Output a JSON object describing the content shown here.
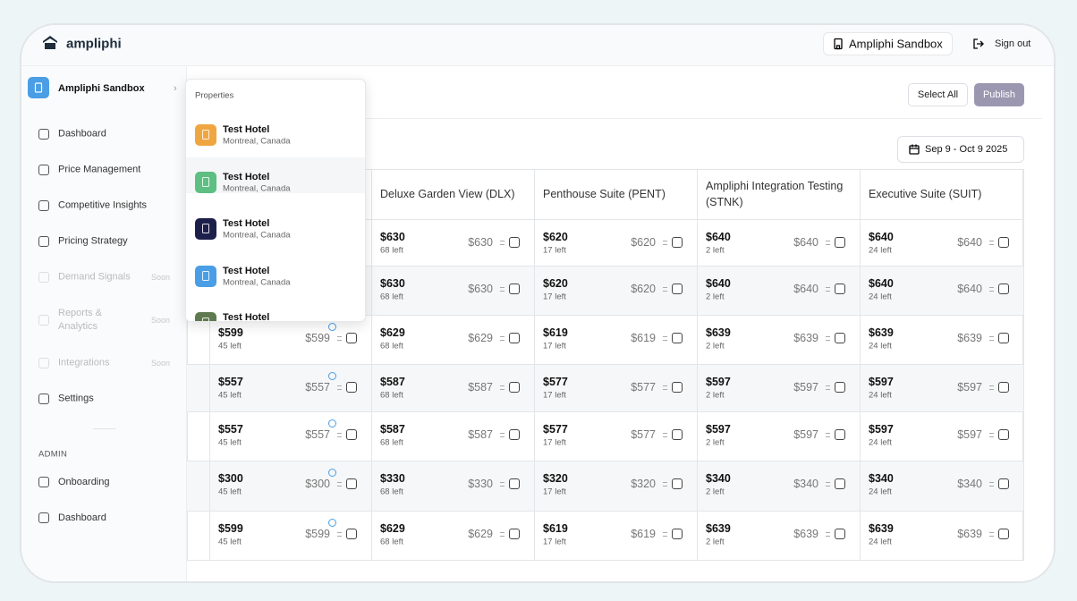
{
  "header": {
    "brand": "ampliphi",
    "workspace": "Ampliphi Sandbox",
    "sign_out": "Sign out"
  },
  "sidebar": {
    "account": "Ampliphi Sandbox",
    "nav": [
      {
        "label": "Dashboard"
      },
      {
        "label": "Price Management"
      },
      {
        "label": "Competitive Insights"
      },
      {
        "label": "Pricing Strategy"
      },
      {
        "label": "Demand Signals",
        "badge": "Soon"
      },
      {
        "label": "Reports & Analytics",
        "badge": "Soon"
      },
      {
        "label": "Integrations",
        "badge": "Soon"
      },
      {
        "label": "Settings"
      }
    ],
    "admin_heading": "ADMIN",
    "admin_nav": [
      {
        "label": "Onboarding"
      },
      {
        "label": "Dashboard"
      }
    ]
  },
  "toolbar": {
    "select_all": "Select All",
    "publish": "Publish",
    "date_range": "Sep 9 - Oct 9 2025"
  },
  "dropdown": {
    "heading": "Properties",
    "items": [
      {
        "name": "Test Hotel",
        "location": "Montreal, Canada"
      },
      {
        "name": "Test Hotel",
        "location": "Montreal, Canada"
      },
      {
        "name": "Test Hotel",
        "location": "Montreal, Canada"
      },
      {
        "name": "Test Hotel",
        "location": "Montreal, Canada"
      },
      {
        "name": "Test Hotel"
      }
    ]
  },
  "table": {
    "columns": [
      "Deluxe Garden View (DLX)",
      "Penthouse Suite (PENT)",
      "Ampliphi Integration Testing (STNK)",
      "Executive Suite (SUIT)"
    ],
    "rows": [
      {
        "cells": [
          {
            "price": "$630",
            "left": "68 left",
            "rate": "$630"
          },
          {
            "price": "$620",
            "left": "17 left",
            "rate": "$620"
          },
          {
            "price": "$640",
            "left": "2 left",
            "rate": "$640"
          },
          {
            "price": "$640",
            "left": "24 left",
            "rate": "$640"
          }
        ]
      },
      {
        "cells": [
          {
            "price": "$630",
            "left": "68 left",
            "rate": "$630"
          },
          {
            "price": "$620",
            "left": "17 left",
            "rate": "$620"
          },
          {
            "price": "$640",
            "left": "2 left",
            "rate": "$640"
          },
          {
            "price": "$640",
            "left": "24 left",
            "rate": "$640"
          }
        ]
      },
      {
        "first": {
          "price": "$599",
          "left": "45 left",
          "rate": "$599"
        },
        "cells": [
          {
            "price": "$629",
            "left": "68 left",
            "rate": "$629"
          },
          {
            "price": "$619",
            "left": "17 left",
            "rate": "$619"
          },
          {
            "price": "$639",
            "left": "2 left",
            "rate": "$639"
          },
          {
            "price": "$639",
            "left": "24 left",
            "rate": "$639"
          }
        ]
      },
      {
        "first": {
          "price": "$557",
          "left": "45 left",
          "rate": "$557"
        },
        "cells": [
          {
            "price": "$587",
            "left": "68 left",
            "rate": "$587"
          },
          {
            "price": "$577",
            "left": "17 left",
            "rate": "$577"
          },
          {
            "price": "$597",
            "left": "2 left",
            "rate": "$597"
          },
          {
            "price": "$597",
            "left": "24 left",
            "rate": "$597"
          }
        ]
      },
      {
        "first": {
          "price": "$557",
          "left": "45 left",
          "rate": "$557"
        },
        "cells": [
          {
            "price": "$587",
            "left": "68 left",
            "rate": "$587"
          },
          {
            "price": "$577",
            "left": "17 left",
            "rate": "$577"
          },
          {
            "price": "$597",
            "left": "2 left",
            "rate": "$597"
          },
          {
            "price": "$597",
            "left": "24 left",
            "rate": "$597"
          }
        ]
      },
      {
        "first": {
          "price": "$300",
          "left": "45 left",
          "rate": "$300"
        },
        "cells": [
          {
            "price": "$330",
            "left": "68 left",
            "rate": "$330"
          },
          {
            "price": "$320",
            "left": "17 left",
            "rate": "$320"
          },
          {
            "price": "$340",
            "left": "2 left",
            "rate": "$340"
          },
          {
            "price": "$340",
            "left": "24 left",
            "rate": "$340"
          }
        ]
      },
      {
        "first": {
          "price": "$599",
          "left": "45 left",
          "rate": "$599"
        },
        "cells": [
          {
            "price": "$629",
            "left": "68 left",
            "rate": "$629"
          },
          {
            "price": "$619",
            "left": "17 left",
            "rate": "$619"
          },
          {
            "price": "$639",
            "left": "2 left",
            "rate": "$639"
          },
          {
            "price": "$639",
            "left": "24 left",
            "rate": "$639"
          }
        ]
      }
    ]
  }
}
